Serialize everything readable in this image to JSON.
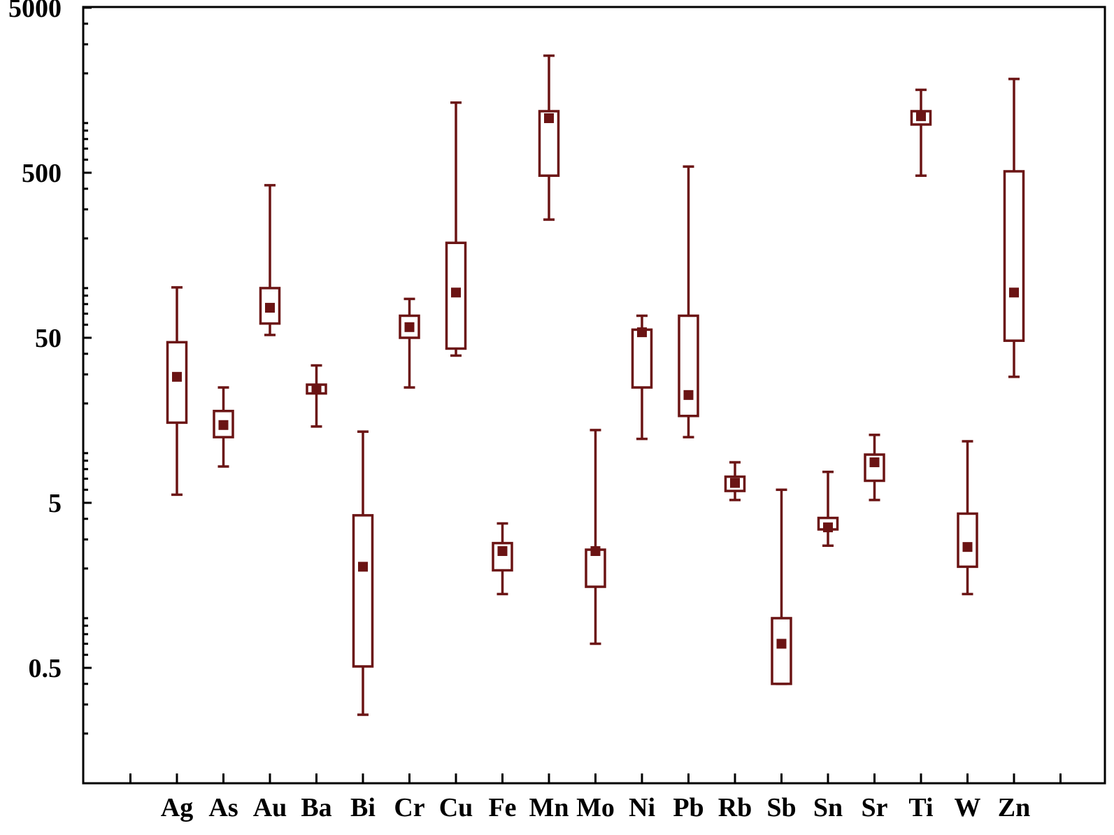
{
  "chart_data": {
    "type": "box",
    "title": "",
    "xlabel": "",
    "ylabel": "",
    "yscale": "log",
    "ylim": [
      0.15,
      5000
    ],
    "yticks": [
      0.5,
      5,
      50,
      500,
      5000
    ],
    "ytick_labels": [
      "0.5",
      "5",
      "50",
      "500",
      "5000"
    ],
    "categories": [
      "Ag",
      "As",
      "Au",
      "Ba",
      "Bi",
      "Cr",
      "Cu",
      "Fe",
      "Mn",
      "Mo",
      "Ni",
      "Pb",
      "Rb",
      "Sb",
      "Sn",
      "Sr",
      "Ti",
      "W",
      "Zn"
    ],
    "boxes": [
      {
        "whisker_low": 5.6,
        "q1": 15.3,
        "median": 29,
        "q3": 47,
        "whisker_high": 101
      },
      {
        "whisker_low": 8.3,
        "q1": 12.5,
        "median": 14.8,
        "q3": 18,
        "whisker_high": 25
      },
      {
        "whisker_low": 52,
        "q1": 61,
        "median": 76,
        "q3": 100,
        "whisker_high": 420
      },
      {
        "whisker_low": 14.5,
        "q1": 23,
        "median": 24.5,
        "q3": 26,
        "whisker_high": 34
      },
      {
        "whisker_low": 0.26,
        "q1": 0.51,
        "median": 2.05,
        "q3": 4.2,
        "whisker_high": 13.5
      },
      {
        "whisker_low": 25,
        "q1": 50,
        "median": 58,
        "q3": 68,
        "whisker_high": 86
      },
      {
        "whisker_low": 39,
        "q1": 43,
        "median": 94,
        "q3": 188,
        "whisker_high": 1330
      },
      {
        "whisker_low": 1.4,
        "q1": 1.95,
        "median": 2.55,
        "q3": 2.85,
        "whisker_high": 3.75
      },
      {
        "whisker_low": 260,
        "q1": 480,
        "median": 1070,
        "q3": 1180,
        "whisker_high": 2560
      },
      {
        "whisker_low": 0.7,
        "q1": 1.55,
        "median": 2.55,
        "q3": 2.6,
        "whisker_high": 13.8
      },
      {
        "whisker_low": 12.2,
        "q1": 25,
        "median": 54,
        "q3": 56,
        "whisker_high": 68
      },
      {
        "whisker_low": 12.5,
        "q1": 16.8,
        "median": 22.5,
        "q3": 68,
        "whisker_high": 545
      },
      {
        "whisker_low": 5.2,
        "q1": 5.9,
        "median": 6.6,
        "q3": 7.2,
        "whisker_high": 8.8
      },
      {
        "whisker_low": 0.4,
        "q1": 0.4,
        "median": 0.7,
        "q3": 1.0,
        "whisker_high": 6.0
      },
      {
        "whisker_low": 2.75,
        "q1": 3.45,
        "median": 3.55,
        "q3": 4.05,
        "whisker_high": 7.7
      },
      {
        "whisker_low": 5.2,
        "q1": 6.8,
        "median": 8.8,
        "q3": 9.8,
        "whisker_high": 12.9
      },
      {
        "whisker_low": 480,
        "q1": 980,
        "median": 1100,
        "q3": 1180,
        "whisker_high": 1590
      },
      {
        "whisker_low": 1.4,
        "q1": 2.05,
        "median": 2.7,
        "q3": 4.3,
        "whisker_high": 11.8
      },
      {
        "whisker_low": 29,
        "q1": 48,
        "median": 94,
        "q3": 510,
        "whisker_high": 1850
      }
    ],
    "grid": false,
    "legend": "none",
    "colors": {
      "series": "#6b1414",
      "axis": "#000000"
    }
  }
}
